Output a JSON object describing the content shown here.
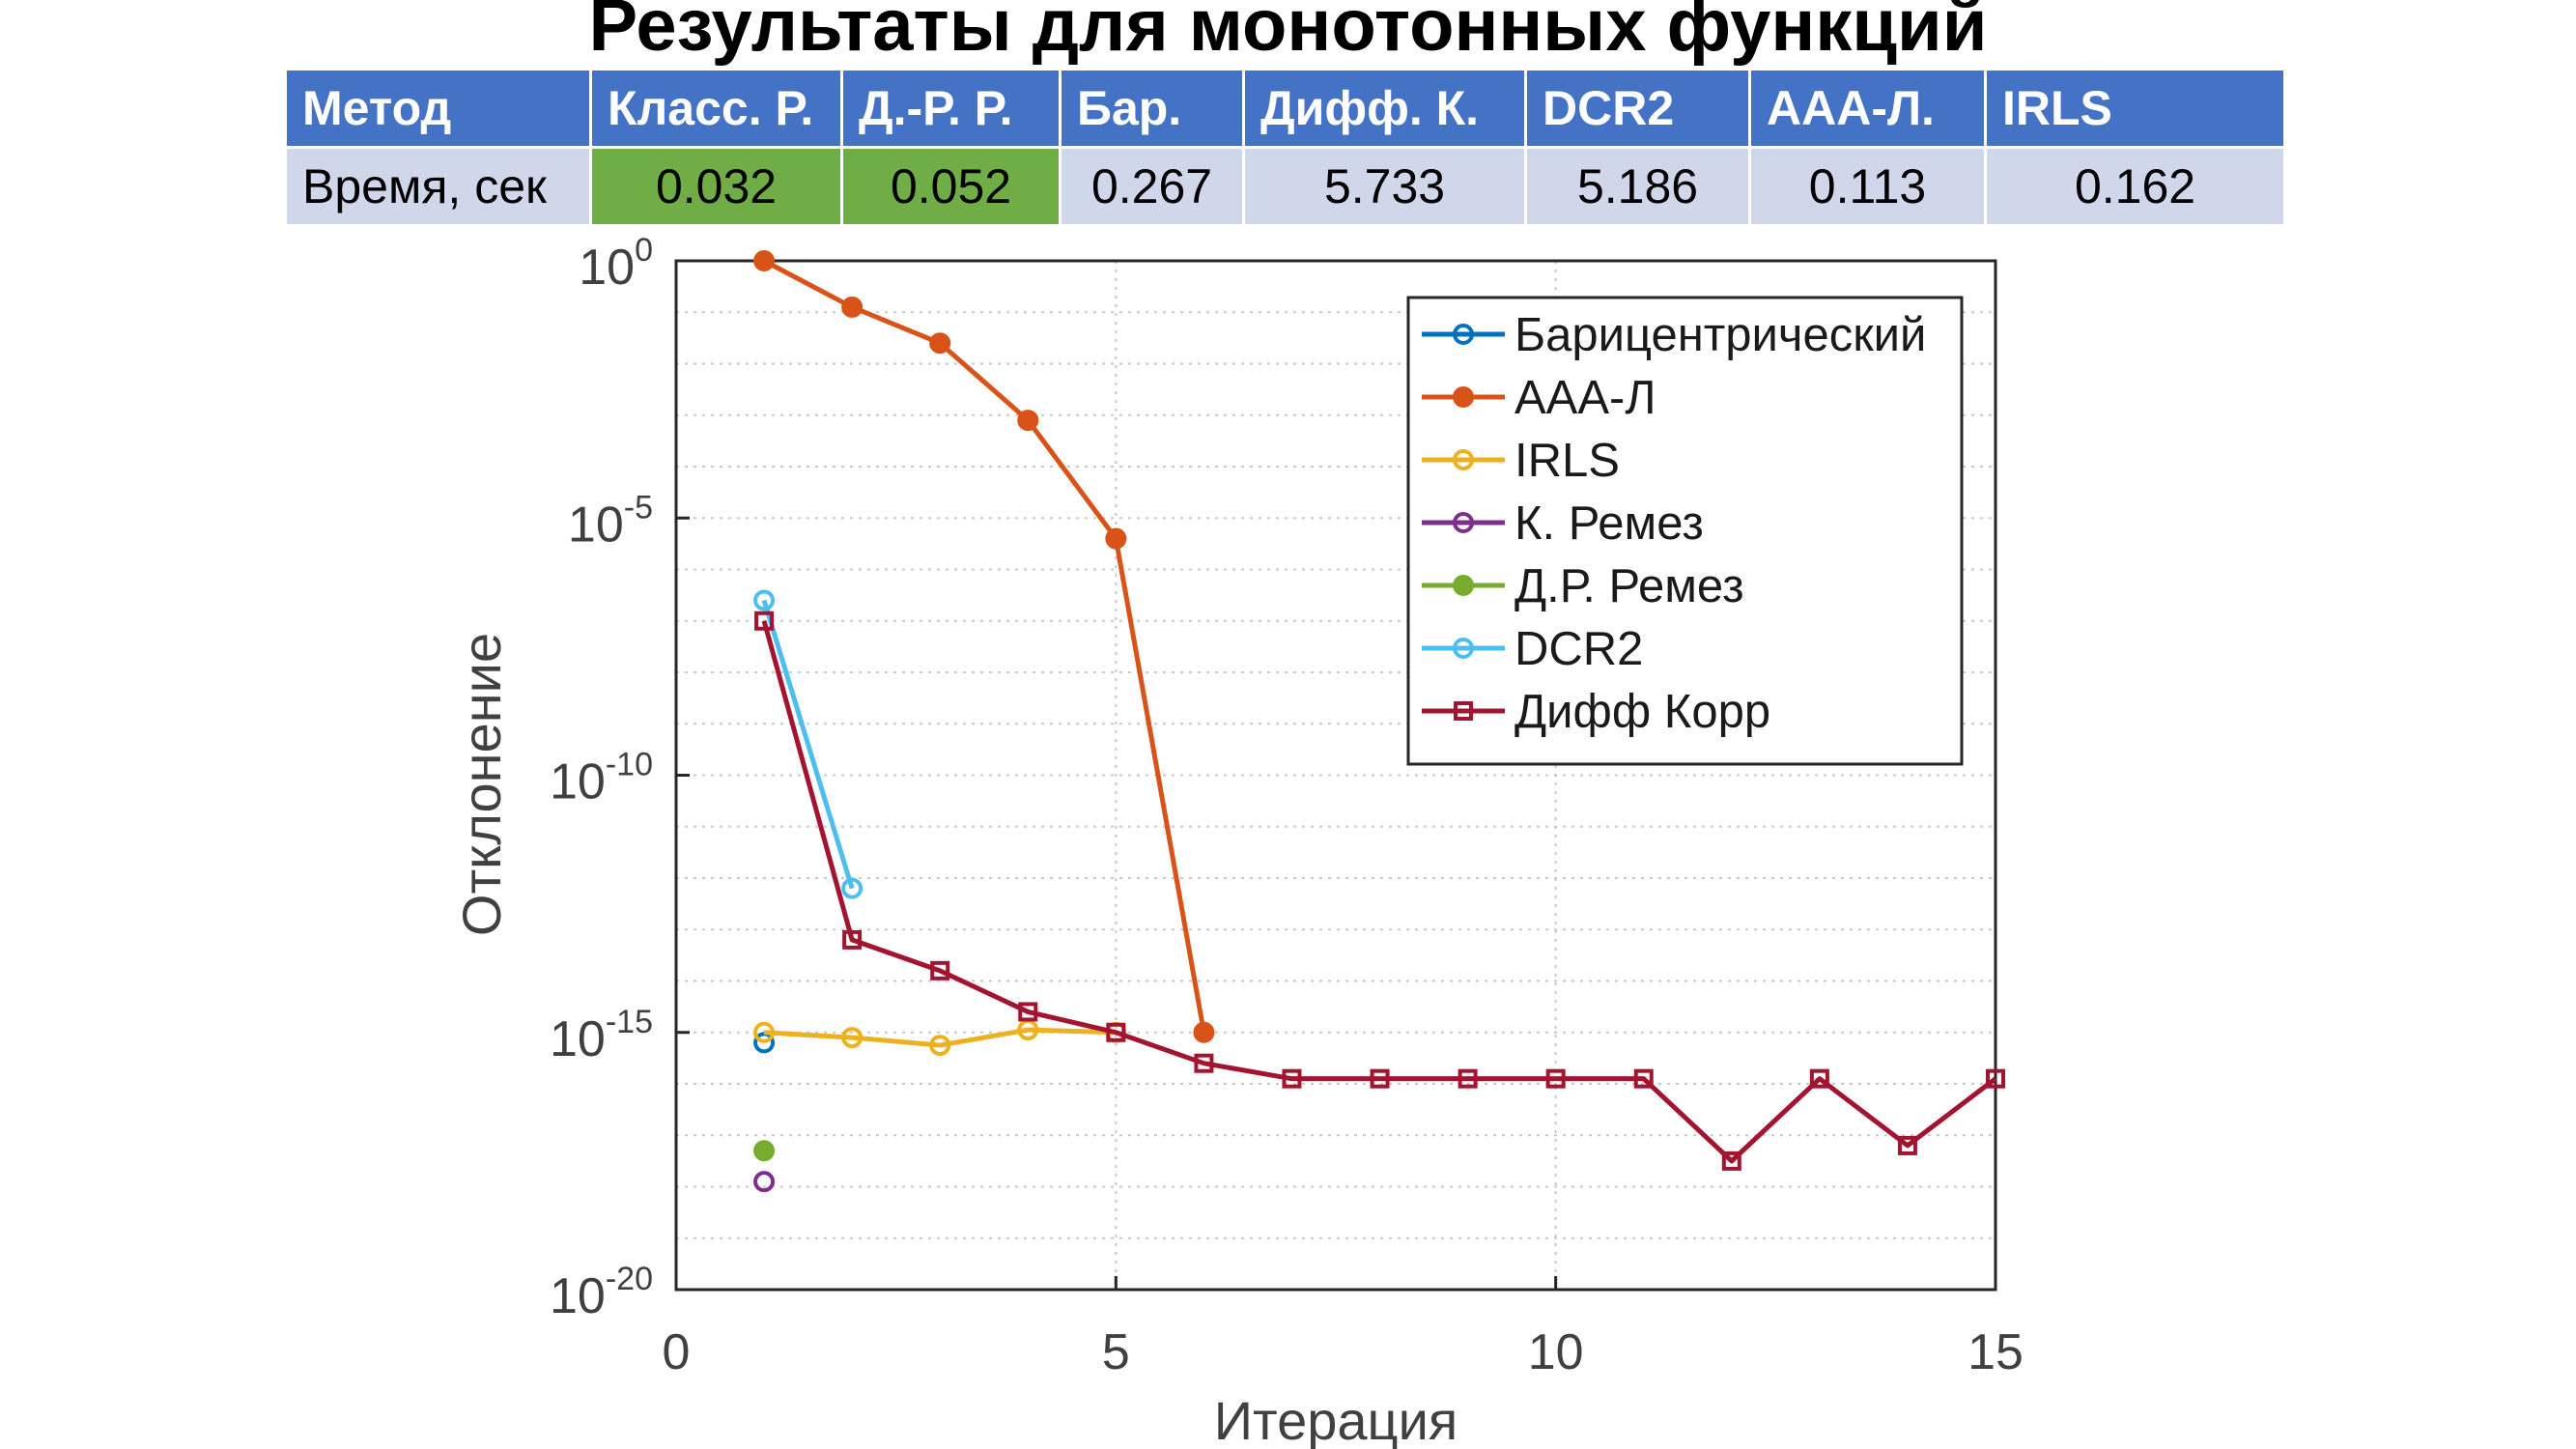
{
  "title": "Результаты для монотонных функций",
  "table": {
    "header": [
      "Метод",
      "Класс. Р.",
      "Д.-Р. Р.",
      "Бар.",
      "Дифф. К.",
      "DCR2",
      "AAA-Л.",
      "IRLS"
    ],
    "row_label": "Время, сек",
    "values": [
      "0.032",
      "0.052",
      "0.267",
      "5.733",
      "5.186",
      "0.113",
      "0.162"
    ],
    "highlight_color": "#70ad47",
    "header_color": "#4472c4",
    "cell_color": "#d1d7ea"
  },
  "chart_data": {
    "type": "line",
    "xlabel": "Итерация",
    "ylabel": "Отклонение",
    "y_scale": "log",
    "xlim": [
      0,
      15
    ],
    "ylim_exp": [
      -20,
      0
    ],
    "x_ticks": [
      "0",
      "5",
      "10",
      "15"
    ],
    "y_ticks": [
      {
        "base": "10",
        "exp": "0",
        "value_exp": 0
      },
      {
        "base": "10",
        "exp": "-5",
        "value_exp": -5
      },
      {
        "base": "10",
        "exp": "-10",
        "value_exp": -10
      },
      {
        "base": "10",
        "exp": "-15",
        "value_exp": -15
      },
      {
        "base": "10",
        "exp": "-20",
        "value_exp": -20
      }
    ],
    "grid": "dotted",
    "legend_position": "top-right",
    "series": [
      {
        "name": "Барицентрический",
        "color": "#0072bd",
        "marker": "open-circle",
        "x": [
          1
        ],
        "y_exp": [
          -15.2
        ]
      },
      {
        "name": "AAA-Л",
        "color": "#d95319",
        "marker": "filled-circle",
        "x": [
          1,
          2,
          3,
          4,
          5,
          6
        ],
        "y_exp": [
          0,
          -0.9,
          -1.6,
          -3.1,
          -5.4,
          -15.0
        ]
      },
      {
        "name": "IRLS",
        "color": "#edb120",
        "marker": "open-circle",
        "x": [
          1,
          2,
          3,
          4,
          5
        ],
        "y_exp": [
          -15.0,
          -15.1,
          -15.25,
          -14.95,
          -15.0
        ]
      },
      {
        "name": "К. Ремез",
        "color": "#7e2f8e",
        "marker": "open-circle",
        "x": [
          1
        ],
        "y_exp": [
          -17.9
        ]
      },
      {
        "name": "Д.Р. Ремез",
        "color": "#77ac30",
        "marker": "filled-circle",
        "x": [
          1
        ],
        "y_exp": [
          -17.3
        ]
      },
      {
        "name": "DCR2",
        "color": "#4dbeee",
        "marker": "open-circle",
        "x": [
          1,
          2
        ],
        "y_exp": [
          -6.6,
          -12.2
        ]
      },
      {
        "name": "Дифф Корр",
        "color": "#a2142f",
        "marker": "open-square",
        "x": [
          1,
          2,
          3,
          4,
          5,
          6,
          7,
          8,
          9,
          10,
          11,
          12,
          13,
          14,
          15
        ],
        "y_exp": [
          -7.0,
          -13.2,
          -13.8,
          -14.6,
          -15.0,
          -15.6,
          -15.9,
          -15.9,
          -15.9,
          -15.9,
          -15.9,
          -17.5,
          -15.9,
          -17.2,
          -15.9
        ]
      }
    ]
  }
}
